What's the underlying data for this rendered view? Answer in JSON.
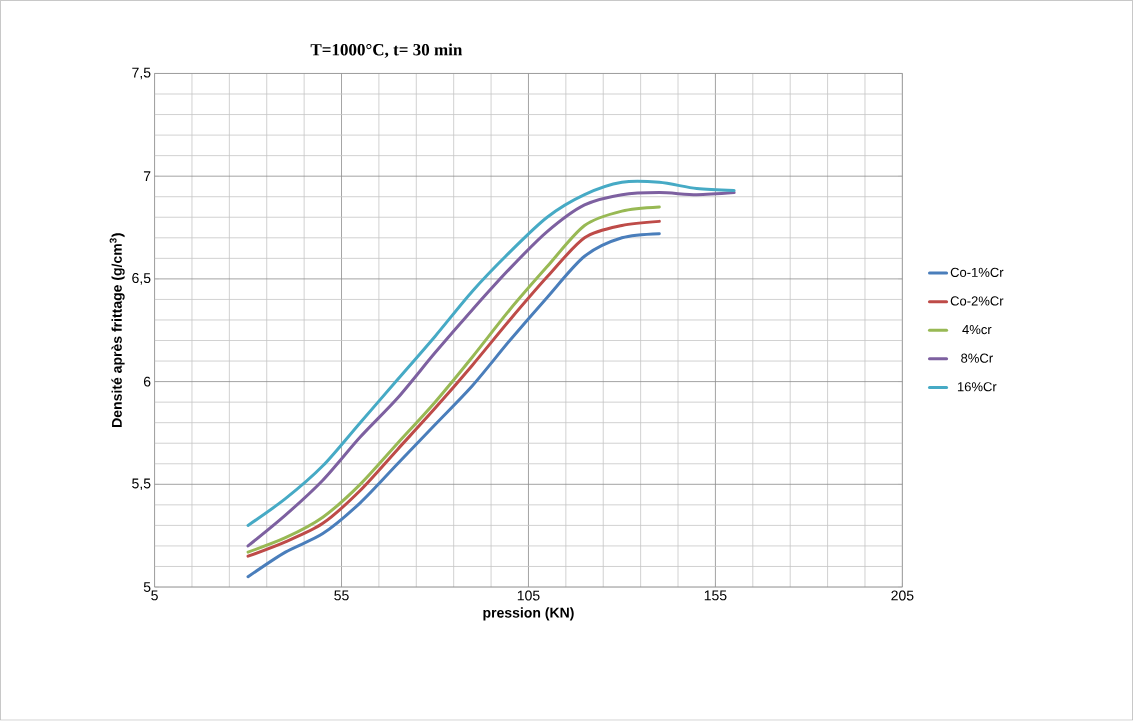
{
  "chart_data": {
    "type": "line",
    "title": "T=1000°C, t= 30 min",
    "xlabel": "pression (KN)",
    "ylabel": "Densité après frittage (g/cm$^{3}$)",
    "xlim": [
      5,
      205
    ],
    "ylim": [
      5,
      7.5
    ],
    "xticks": [
      5,
      55,
      105,
      155,
      205
    ],
    "yticks": [
      5,
      {
        "value": 5.5,
        "label": "5,5"
      },
      6,
      {
        "value": 6.5,
        "label": "6,5"
      },
      7,
      {
        "value": 7.5,
        "label": "7,5"
      }
    ],
    "grid": true,
    "legend": "right",
    "marker": "none",
    "line_style": "solid",
    "series": [
      {
        "name": "Co-1%Cr",
        "color": "#4a7ebb",
        "x": [
          30,
          40,
          50,
          60,
          70,
          80,
          90,
          100,
          110,
          120,
          130,
          140
        ],
        "values": [
          5.05,
          5.17,
          5.26,
          5.41,
          5.6,
          5.79,
          5.98,
          6.2,
          6.41,
          6.61,
          6.7,
          6.72
        ]
      },
      {
        "name": "Co-2%Cr",
        "color": "#be4b48",
        "x": [
          30,
          40,
          50,
          60,
          70,
          80,
          90,
          100,
          110,
          120,
          130,
          140
        ],
        "values": [
          5.15,
          5.22,
          5.31,
          5.47,
          5.67,
          5.87,
          6.08,
          6.3,
          6.51,
          6.7,
          6.76,
          6.78
        ]
      },
      {
        "name": "4%cr",
        "color": "#98b954",
        "x": [
          30,
          40,
          50,
          60,
          70,
          80,
          90,
          100,
          110,
          120,
          130,
          140
        ],
        "values": [
          5.17,
          5.24,
          5.34,
          5.5,
          5.7,
          5.9,
          6.12,
          6.35,
          6.56,
          6.76,
          6.83,
          6.85
        ]
      },
      {
        "name": "8%Cr",
        "color": "#7d60a0",
        "x": [
          30,
          40,
          50,
          60,
          70,
          80,
          90,
          100,
          110,
          120,
          130,
          140,
          150,
          160
        ],
        "values": [
          5.2,
          5.35,
          5.52,
          5.73,
          5.92,
          6.14,
          6.35,
          6.55,
          6.73,
          6.86,
          6.91,
          6.92,
          6.91,
          6.92
        ]
      },
      {
        "name": "16%Cr",
        "color": "#46aac5",
        "x": [
          30,
          40,
          50,
          60,
          70,
          80,
          90,
          100,
          110,
          120,
          130,
          140,
          150,
          160
        ],
        "values": [
          5.3,
          5.43,
          5.59,
          5.8,
          6.01,
          6.22,
          6.44,
          6.63,
          6.8,
          6.91,
          6.97,
          6.97,
          6.94,
          6.93
        ]
      }
    ]
  }
}
